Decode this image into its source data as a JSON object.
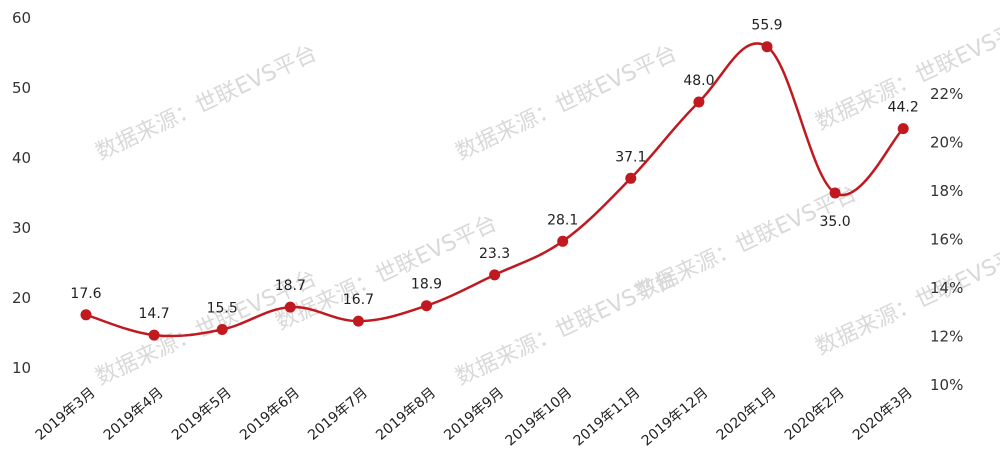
{
  "watermark": "数据来源：世联EVS平台",
  "chart_data": {
    "type": "line",
    "title": "",
    "xlabel": "",
    "ylabel": "",
    "categories": [
      "2019年3月",
      "2019年4月",
      "2019年5月",
      "2019年6月",
      "2019年7月",
      "2019年8月",
      "2019年9月",
      "2019年10月",
      "2019年11月",
      "2019年12月",
      "2020年1月",
      "2020年2月",
      "2020年3月"
    ],
    "values": [
      17.6,
      14.7,
      15.5,
      18.7,
      16.7,
      18.9,
      23.3,
      28.1,
      37.1,
      48.0,
      55.9,
      35.0,
      44.2
    ],
    "value_labels": [
      "17.6",
      "14.7",
      "15.5",
      "18.7",
      "16.7",
      "18.9",
      "23.3",
      "28.1",
      "37.1",
      "48.0",
      "55.9",
      "35.0",
      "44.2"
    ],
    "ylim": [
      10,
      60
    ],
    "yticks": [
      "10",
      "20",
      "30",
      "40",
      "50",
      "60"
    ],
    "y2ticks": [
      "10%",
      "12%",
      "14%",
      "16%",
      "18%",
      "20%",
      "22%"
    ],
    "y2lim": [
      10,
      22
    ],
    "grid": false,
    "colors": {
      "line": "#c0191f",
      "marker": "#c0191f"
    }
  }
}
